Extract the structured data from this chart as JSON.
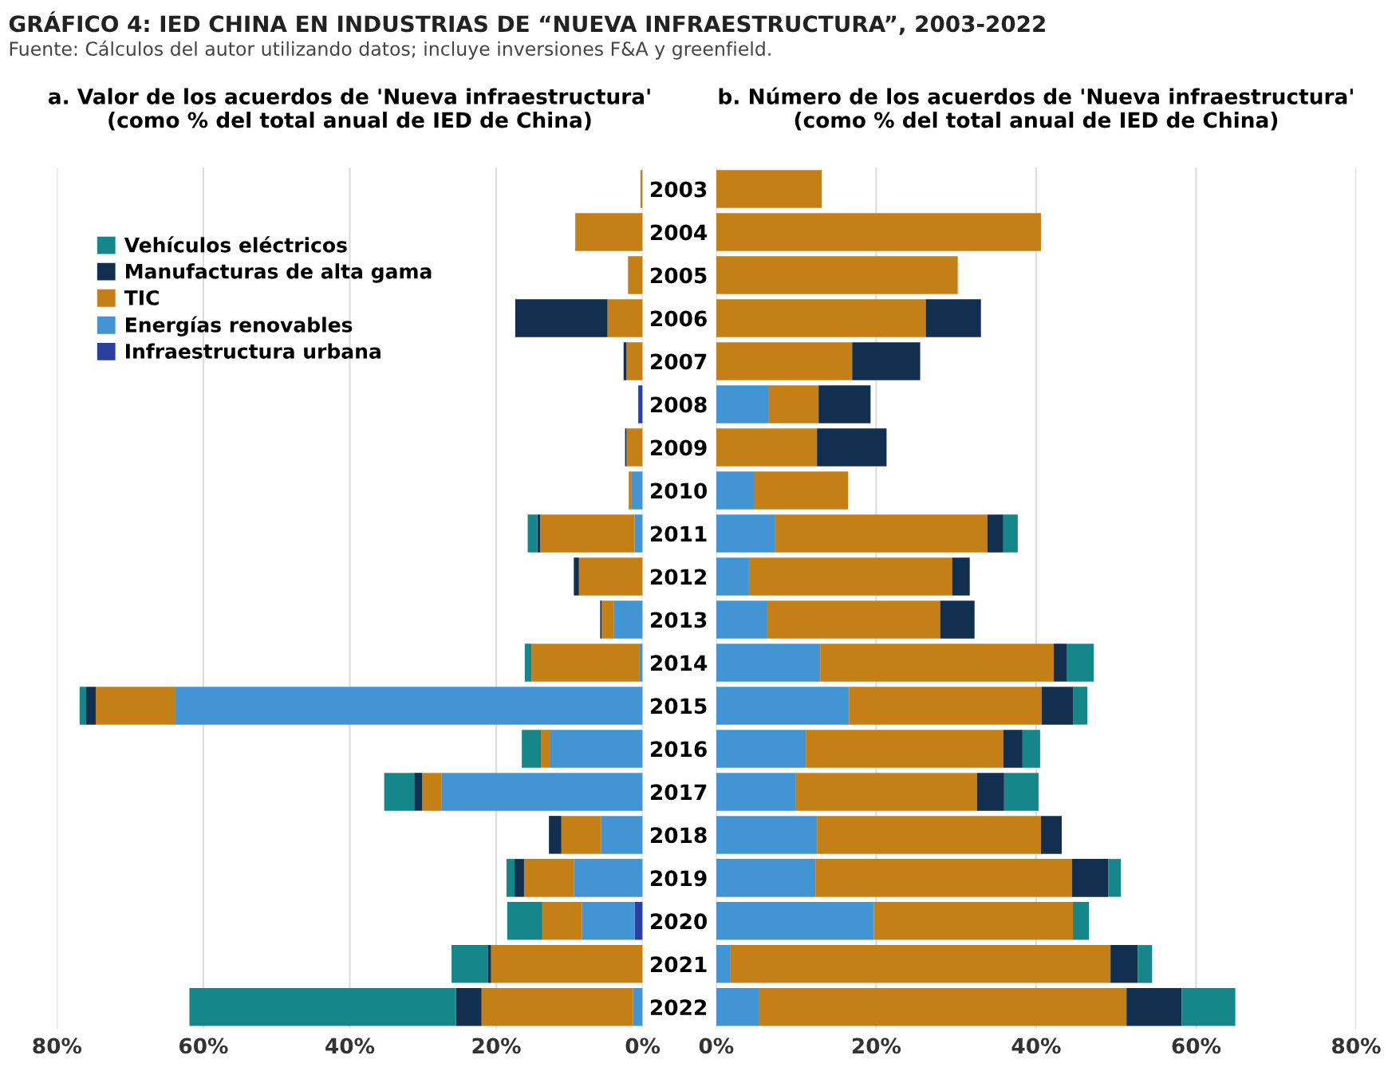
{
  "chart_data": [
    {
      "type": "bar",
      "orientation": "horizontal",
      "stacked": true,
      "title": "a. Valor de los acuerdos de 'Nueva infraestructura'\n(como % del total anual de IED de China)",
      "annotations": [
        "GRÁFICO 4: IED CHINA EN INDUSTRIAS DE “NUEVA INFRAESTRUCTURA”, 2003-2022",
        "Fuente: Cálculos del autor utilizando datos; incluye inversiones F&A y greenfield."
      ],
      "categories": [
        "2003",
        "2004",
        "2005",
        "2006",
        "2007",
        "2008",
        "2009",
        "2010",
        "2011",
        "2012",
        "2013",
        "2014",
        "2015",
        "2016",
        "2017",
        "2018",
        "2019",
        "2020",
        "2021",
        "2022"
      ],
      "series": [
        {
          "name": "Infraestructura urbana",
          "color": "#2b3f9e",
          "values": [
            0,
            0,
            0,
            0,
            0,
            0.6,
            0,
            0,
            0,
            0,
            0,
            0,
            0,
            0,
            0,
            0,
            0,
            1.1,
            0,
            0
          ]
        },
        {
          "name": "Energías renovables",
          "color": "#4295d2",
          "values": [
            0,
            0,
            0,
            0,
            0,
            0,
            0,
            1.5,
            1.1,
            0,
            3.9,
            0.4,
            63.8,
            12.6,
            27.5,
            5.7,
            9.4,
            7.2,
            0,
            1.3
          ]
        },
        {
          "name": "TIC",
          "color": "#c47f17",
          "values": [
            0.3,
            9.2,
            2.0,
            4.8,
            2.2,
            0,
            2.2,
            0.4,
            12.9,
            8.7,
            1.7,
            14.8,
            10.9,
            1.3,
            2.6,
            5.4,
            6.8,
            5.4,
            20.7,
            20.7
          ]
        },
        {
          "name": "Manufacturas de alta gama",
          "color": "#132f4f",
          "values": [
            0,
            0,
            0,
            12.6,
            0.4,
            0,
            0.2,
            0,
            0.4,
            0.7,
            0.2,
            0,
            1.3,
            0,
            1.1,
            1.7,
            1.3,
            0,
            0.4,
            3.5
          ]
        },
        {
          "name": "Vehículos eléctricos",
          "color": "#15878a",
          "values": [
            0,
            0,
            0,
            0,
            0,
            0,
            0,
            0,
            1.3,
            0,
            0,
            0.9,
            0.9,
            2.6,
            4.1,
            0,
            1.1,
            4.8,
            5.0,
            36.4
          ]
        }
      ],
      "xlim": [
        80,
        0
      ],
      "xticks": [
        {
          "value": 0,
          "label": "0%"
        },
        {
          "value": 20,
          "label": "20%"
        },
        {
          "value": 40,
          "label": "40%"
        },
        {
          "value": 60,
          "label": "60%"
        },
        {
          "value": 80,
          "label": "80%"
        }
      ],
      "grid": "x",
      "legend": "top left",
      "tick_labels": "x"
    },
    {
      "type": "bar",
      "orientation": "horizontal",
      "stacked": true,
      "title": "b. Número de los acuerdos de 'Nueva infraestructura'\n(como % del total anual de IED de China)",
      "categories": [
        "2003",
        "2004",
        "2005",
        "2006",
        "2007",
        "2008",
        "2009",
        "2010",
        "2011",
        "2012",
        "2013",
        "2014",
        "2015",
        "2016",
        "2017",
        "2018",
        "2019",
        "2020",
        "2021",
        "2022"
      ],
      "series": [
        {
          "color": "#4295d2",
          "values": [
            0,
            0,
            0,
            0,
            0,
            6.5,
            0,
            4.7,
            7.3,
            4.1,
            6.3,
            13.0,
            16.6,
            11.2,
            9.9,
            12.6,
            12.4,
            19.7,
            1.8,
            5.3
          ]
        },
        {
          "color": "#c47f17",
          "values": [
            13.2,
            40.6,
            30.2,
            26.2,
            17.0,
            6.3,
            12.6,
            11.8,
            26.6,
            25.4,
            21.7,
            29.2,
            24.1,
            24.7,
            22.7,
            28.0,
            32.1,
            24.9,
            47.5,
            46.0
          ]
        },
        {
          "color": "#132f4f",
          "values": [
            0,
            0,
            0,
            6.9,
            8.5,
            6.5,
            8.7,
            0,
            2.0,
            2.2,
            4.3,
            1.6,
            3.9,
            2.4,
            3.4,
            2.6,
            4.5,
            0,
            3.4,
            6.9
          ]
        },
        {
          "color": "#15878a",
          "values": [
            0,
            0,
            0,
            0,
            0,
            0,
            0,
            0,
            1.8,
            0,
            0,
            3.4,
            1.8,
            2.2,
            4.3,
            0,
            1.6,
            2.0,
            1.8,
            6.7
          ]
        }
      ],
      "xlim": [
        0,
        80
      ],
      "xticks": [
        {
          "value": 0,
          "label": "0%"
        },
        {
          "value": 20,
          "label": "20%"
        },
        {
          "value": 40,
          "label": "40%"
        },
        {
          "value": 60,
          "label": "60%"
        },
        {
          "value": 80,
          "label": "80%"
        }
      ],
      "grid": "x"
    }
  ]
}
